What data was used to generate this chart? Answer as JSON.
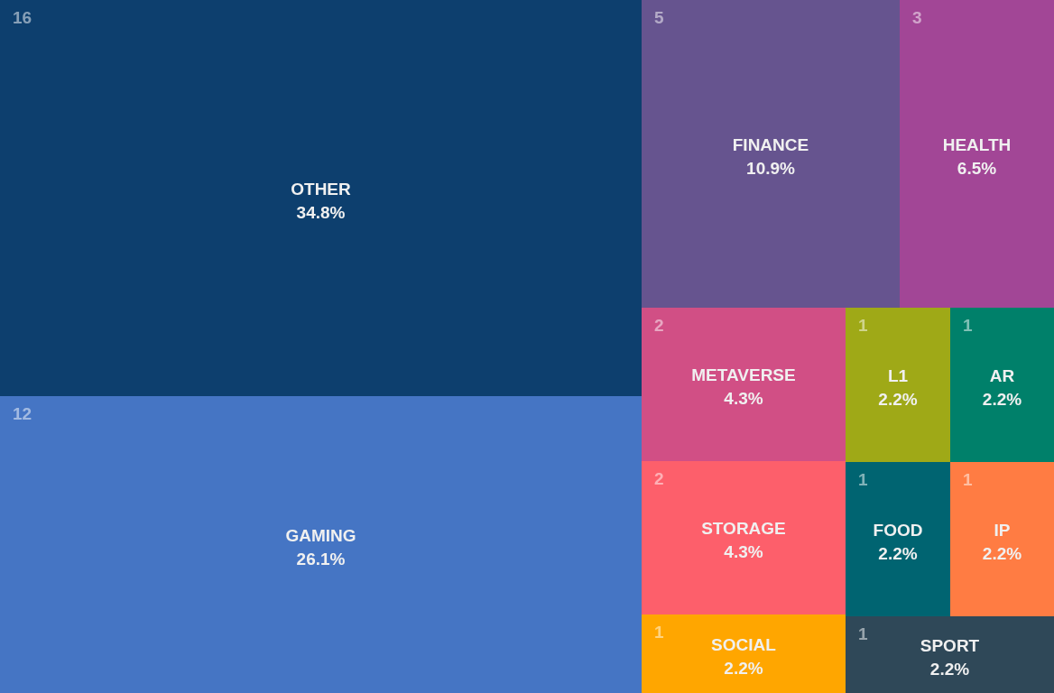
{
  "chart_data": {
    "type": "other",
    "categories": [
      "OTHER",
      "GAMING",
      "FINANCE",
      "HEALTH",
      "METAVERSE",
      "STORAGE",
      "SOCIAL",
      "L1",
      "AR",
      "FOOD",
      "IP",
      "SPORT"
    ],
    "values": [
      34.8,
      26.1,
      10.9,
      6.5,
      4.3,
      4.3,
      2.2,
      2.2,
      2.2,
      2.2,
      2.2,
      2.2
    ],
    "annotations": [
      "16",
      "12",
      "5",
      "3",
      "2",
      "2",
      "1",
      "1",
      "1",
      "1",
      "1",
      "1"
    ],
    "value_labels": [
      "34.8%",
      "26.1%",
      "10.9%",
      "6.5%",
      "4.3%",
      "4.3%",
      "2.2%",
      "2.2%",
      "2.2%",
      "2.2%",
      "2.2%",
      "2.2%"
    ],
    "colors": [
      "#0d3f6e",
      "#4575c4",
      "#66548f",
      "#a24696",
      "#d14f85",
      "#fd5f6b",
      "#ffa600",
      "#9fa917",
      "#00806a",
      "#006471",
      "#ff7c43",
      "#2f4858"
    ]
  }
}
